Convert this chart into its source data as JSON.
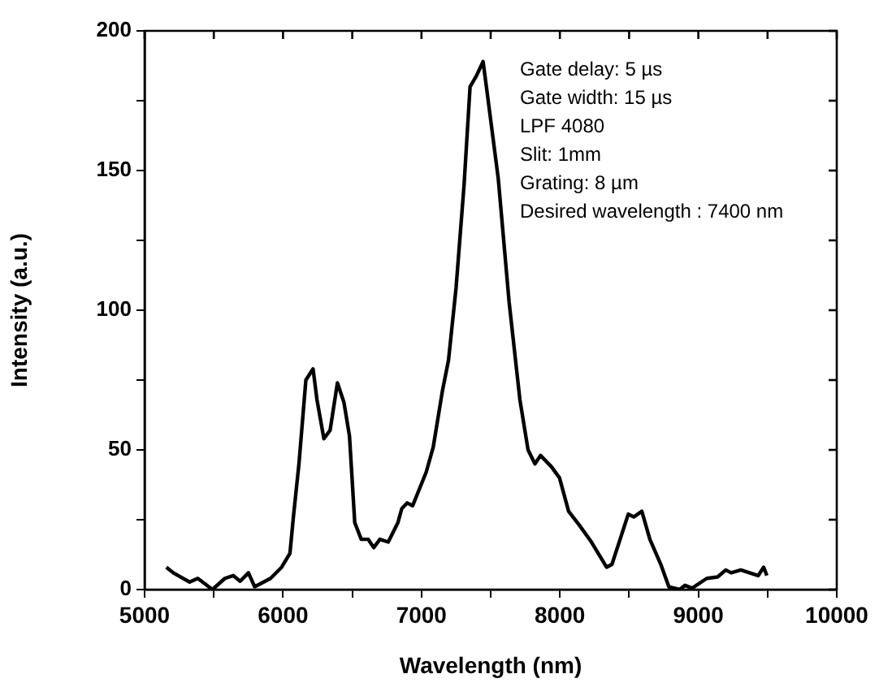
{
  "chart_data": {
    "type": "line",
    "xlabel": "Wavelength (nm)",
    "ylabel": "Intensity (a.u.)",
    "xlim": [
      5000,
      10000
    ],
    "xticks": [
      5000,
      {
        "value": 5500,
        "label": null
      },
      6000,
      {
        "value": 6500,
        "label": null
      },
      7000,
      {
        "value": 7500,
        "label": null
      },
      8000,
      {
        "value": 8500,
        "label": null
      },
      9000,
      {
        "value": 9500,
        "label": null
      },
      10000
    ],
    "ylim": [
      0,
      200
    ],
    "yticks": [
      0,
      {
        "value": 25,
        "label": null
      },
      50,
      {
        "value": 75,
        "label": null
      },
      100,
      {
        "value": 125,
        "label": null
      },
      150,
      {
        "value": 175,
        "label": null
      },
      200
    ],
    "grid": false,
    "legend": false,
    "marker": "none",
    "line_style": "solid",
    "annotations": [
      "Gate delay: 5 µs",
      "Gate width: 15 µs",
      "LPF 4080",
      "Slit: 1mm",
      "Grating: 8 µm",
      "Desired wavelength : 7400 nm"
    ],
    "series": [
      {
        "color": "#000000",
        "x": [
          5157,
          5207,
          5325,
          5384,
          5490,
          5580,
          5640,
          5690,
          5750,
          5795,
          5910,
          5990,
          6050,
          6075,
          6115,
          6165,
          6217,
          6245,
          6295,
          6340,
          6393,
          6440,
          6480,
          6518,
          6565,
          6615,
          6655,
          6700,
          6760,
          6830,
          6858,
          6897,
          6936,
          7034,
          7085,
          7151,
          7195,
          7250,
          7308,
          7351,
          7398,
          7445,
          7469,
          7555,
          7633,
          7711,
          7770,
          7820,
          7860,
          7938,
          7997,
          8063,
          8141,
          8228,
          8337,
          8376,
          8494,
          8533,
          8592,
          8650,
          8729,
          8787,
          8865,
          8904,
          8955,
          9061,
          9139,
          9198,
          9237,
          9307,
          9433,
          9472,
          9495
        ],
        "values": [
          8,
          6,
          2.7,
          4,
          0,
          4,
          5,
          3,
          6,
          1,
          4,
          8,
          13,
          26,
          45,
          75,
          79,
          68,
          54,
          57,
          74,
          67,
          55,
          24,
          18,
          18,
          15,
          18,
          17,
          24,
          29,
          31,
          30,
          42,
          51,
          71,
          82,
          108,
          145,
          180,
          184,
          189,
          180,
          147,
          103,
          68,
          50,
          45,
          48,
          44,
          40,
          28,
          23,
          17,
          8,
          9,
          27,
          26,
          28,
          18,
          9,
          1,
          0,
          1.5,
          0.5,
          4,
          4.5,
          7,
          6,
          7,
          5,
          8,
          5
        ]
      }
    ]
  }
}
